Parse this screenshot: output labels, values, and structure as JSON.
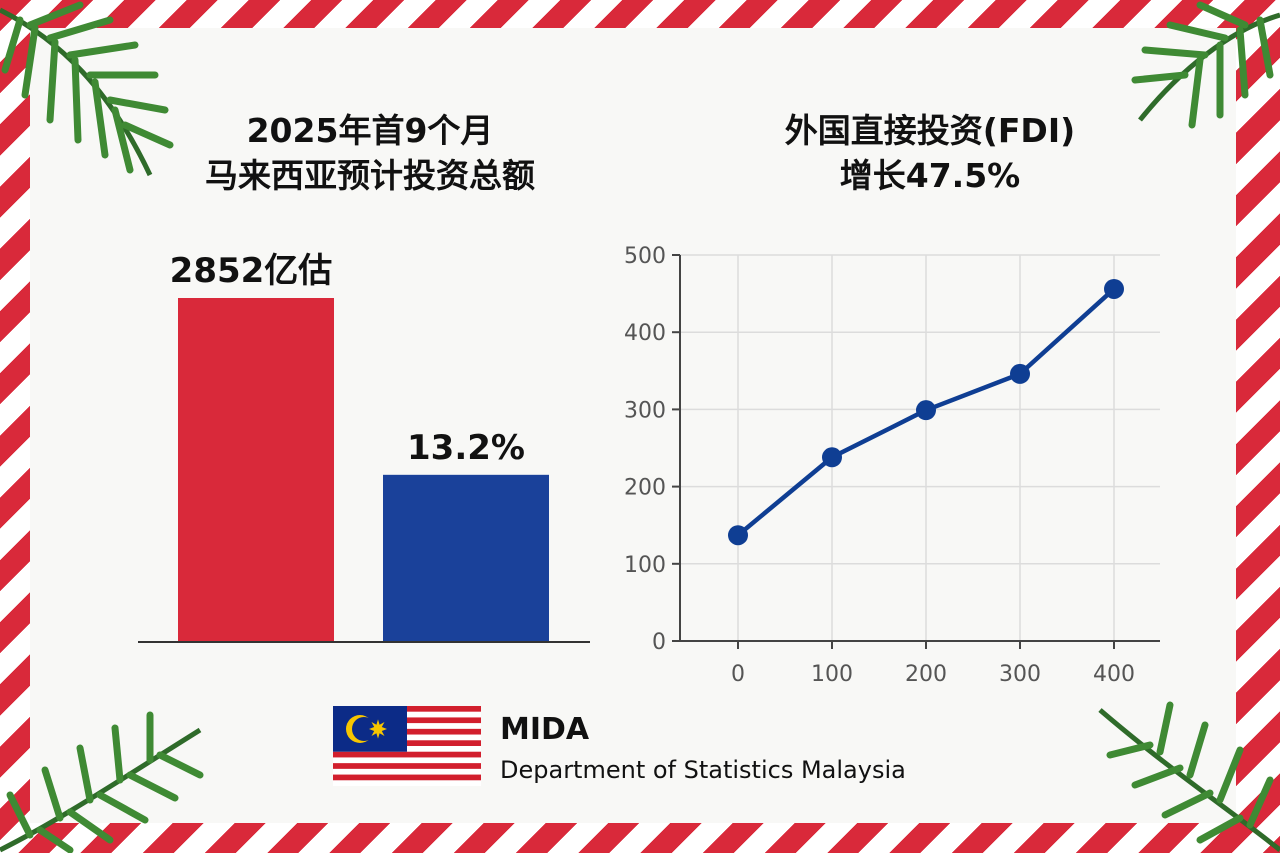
{
  "left_title": {
    "line1": "2025年首9个月",
    "line2": "马来西亚预计投资总额"
  },
  "right_title": {
    "line1": "外国直接投资(FDI)",
    "line2": "增长47.5%"
  },
  "colors": {
    "red": "#d9293a",
    "blue": "#1a419a",
    "line": "#0f3e93",
    "flag_blue": "#0c2b87",
    "flag_yellow": "#f7c600"
  },
  "chart_data": [
    {
      "type": "bar",
      "categories": [
        "",
        ""
      ],
      "values": [
        2852,
        13.2
      ],
      "data_labels": [
        "2852亿估",
        "13.2%"
      ],
      "colors": [
        "#d9293a",
        "#1a419a"
      ],
      "xlabel": "",
      "ylabel": ""
    },
    {
      "type": "line",
      "x": [
        0,
        100,
        200,
        300,
        400
      ],
      "y": [
        137,
        238,
        299,
        346,
        456
      ],
      "xlim": [
        0,
        400
      ],
      "ylim": [
        0,
        500
      ],
      "xticks": [
        "0",
        "100",
        "200",
        "300",
        "400"
      ],
      "yticks": [
        "0",
        "100",
        "200",
        "300",
        "400",
        "500"
      ],
      "grid": true,
      "xlabel": "",
      "ylabel": ""
    }
  ],
  "footer": {
    "name": "MIDA",
    "source": "Department of Statistics Malaysia"
  }
}
